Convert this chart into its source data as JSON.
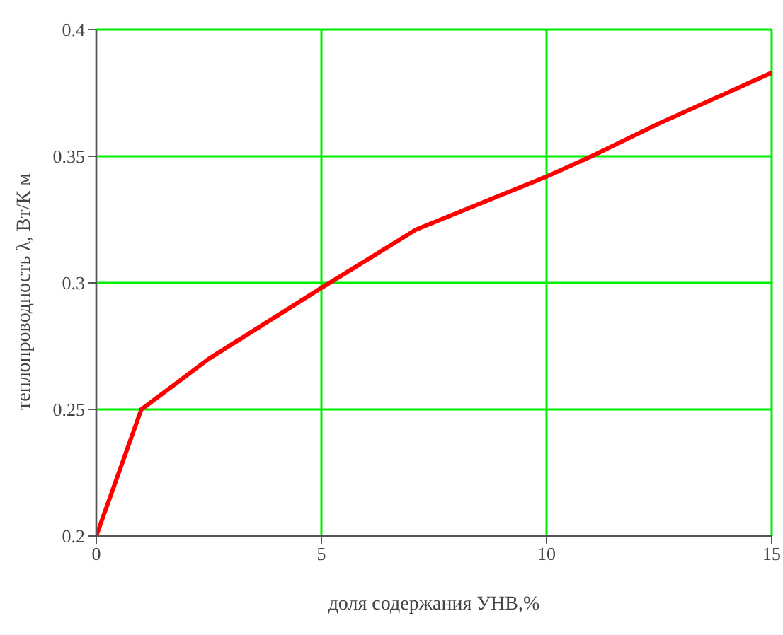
{
  "chart_data": {
    "type": "line",
    "xlabel": "доля содержания УНВ,%",
    "ylabel": "теплопроводность λ, Вт/К м",
    "x": [
      0,
      1,
      2.5,
      5,
      7.1,
      10,
      11,
      12.5,
      15
    ],
    "series": [
      {
        "color": "#ff0000",
        "values": [
          0.2,
          0.25,
          0.27,
          0.298,
          0.321,
          0.342,
          0.35,
          0.363,
          0.383
        ]
      }
    ],
    "xlim": [
      0,
      15
    ],
    "xticks": [
      0,
      5,
      10,
      15
    ],
    "ylim": [
      0.2,
      0.4
    ],
    "yticks": [
      0.2,
      0.25,
      0.3,
      0.35,
      0.4
    ],
    "grid": true,
    "marker": "none",
    "line_style": "solid",
    "legend": false
  }
}
